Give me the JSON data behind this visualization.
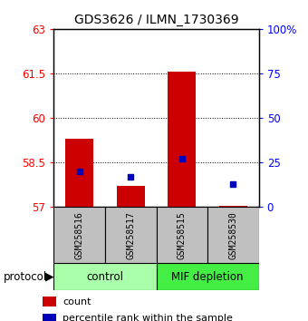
{
  "title": "GDS3626 / ILMN_1730369",
  "samples": [
    "GSM258516",
    "GSM258517",
    "GSM258515",
    "GSM258530"
  ],
  "red_values": [
    59.3,
    57.7,
    61.55,
    57.05
  ],
  "blue_values_pct": [
    20,
    17,
    27,
    13
  ],
  "ylim_left": [
    57,
    63
  ],
  "ylim_right": [
    0,
    100
  ],
  "yticks_left": [
    57,
    58.5,
    60,
    61.5,
    63
  ],
  "yticks_right": [
    0,
    25,
    50,
    75,
    100
  ],
  "ytick_labels_right": [
    "0",
    "25",
    "50",
    "75",
    "100%"
  ],
  "red_color": "#CC0000",
  "blue_color": "#0000BB",
  "bar_bottom": 57,
  "protocol_label": "protocol",
  "legend_count": "count",
  "legend_pct": "percentile rank within the sample",
  "sample_box_color": "#C0C0C0",
  "group1_name": "control",
  "group2_name": "MIF depletion",
  "group1_color": "#AAFFAA",
  "group2_color": "#44EE44",
  "bar_width": 0.55
}
